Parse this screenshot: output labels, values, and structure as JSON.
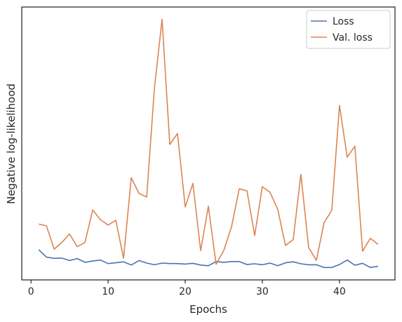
{
  "chart_data": {
    "type": "line",
    "xlabel": "Epochs",
    "ylabel": "Negative log-likelihood",
    "xlim": [
      -1.2,
      47.2
    ],
    "ylim": [
      -0.05,
      1.05
    ],
    "xticks": [
      0,
      10,
      20,
      30,
      40
    ],
    "yticks_shown": false,
    "grid": false,
    "legend_position": "top-right",
    "series": [
      {
        "name": "Loss",
        "color": "#4c72b0",
        "x": [
          1,
          2,
          3,
          4,
          5,
          6,
          7,
          8,
          9,
          10,
          11,
          12,
          13,
          14,
          15,
          16,
          17,
          18,
          19,
          20,
          21,
          22,
          23,
          24,
          25,
          26,
          27,
          28,
          29,
          30,
          31,
          32,
          33,
          34,
          35,
          36,
          37,
          38,
          39,
          40,
          41,
          42,
          43,
          44,
          45
        ],
        "values": [
          0.072,
          0.042,
          0.037,
          0.038,
          0.028,
          0.036,
          0.021,
          0.026,
          0.03,
          0.016,
          0.019,
          0.023,
          0.01,
          0.028,
          0.018,
          0.011,
          0.018,
          0.016,
          0.016,
          0.014,
          0.017,
          0.01,
          0.007,
          0.024,
          0.021,
          0.024,
          0.024,
          0.012,
          0.015,
          0.011,
          0.018,
          0.007,
          0.019,
          0.023,
          0.015,
          0.011,
          0.011,
          0.0,
          0.0,
          0.012,
          0.03,
          0.009,
          0.017,
          0.0,
          0.005
        ]
      },
      {
        "name": "Val. loss",
        "color": "#dd8452",
        "x": [
          1,
          2,
          3,
          4,
          5,
          6,
          7,
          8,
          9,
          10,
          11,
          12,
          13,
          14,
          15,
          16,
          17,
          18,
          19,
          20,
          21,
          22,
          23,
          24,
          25,
          26,
          27,
          28,
          29,
          30,
          31,
          32,
          33,
          34,
          35,
          36,
          37,
          38,
          39,
          40,
          41,
          42,
          43,
          44,
          45
        ],
        "values": [
          0.175,
          0.168,
          0.074,
          0.101,
          0.135,
          0.084,
          0.101,
          0.232,
          0.193,
          0.171,
          0.19,
          0.037,
          0.362,
          0.299,
          0.284,
          0.723,
          1.0,
          0.496,
          0.54,
          0.244,
          0.339,
          0.068,
          0.247,
          0.013,
          0.069,
          0.164,
          0.317,
          0.309,
          0.129,
          0.326,
          0.303,
          0.234,
          0.089,
          0.112,
          0.376,
          0.081,
          0.029,
          0.181,
          0.23,
          0.653,
          0.445,
          0.489,
          0.065,
          0.118,
          0.093
        ]
      }
    ]
  }
}
